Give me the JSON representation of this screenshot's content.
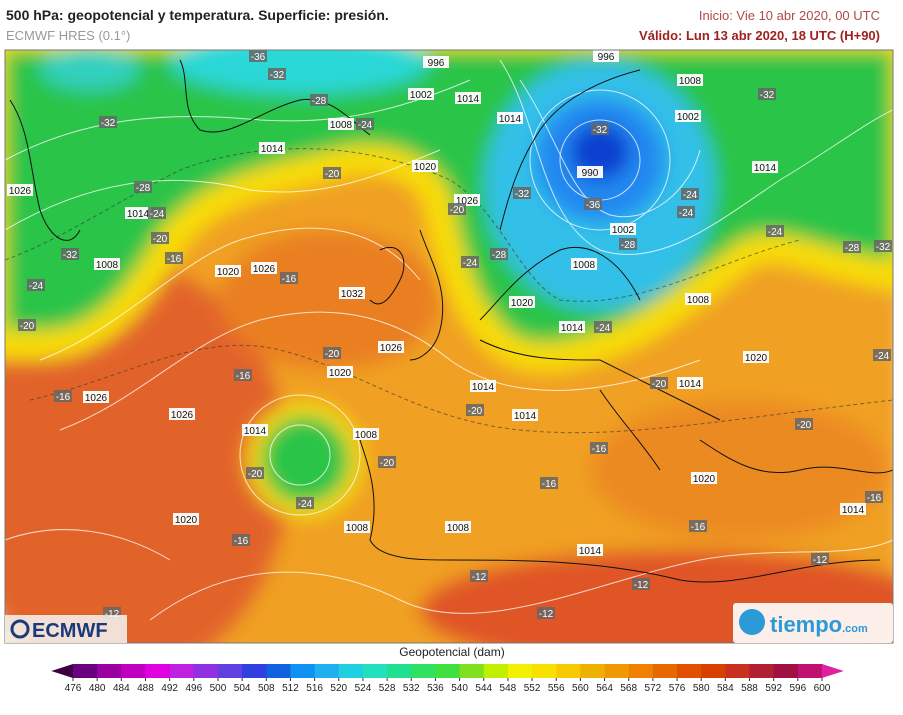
{
  "header": {
    "title": "500 hPa: geopotencial y temperatura. Superficie: presión.",
    "subtitle": "ECMWF HRES (0.1°)",
    "start": "Inicio: Vie 10 abr 2020, 00 UTC",
    "valid": "Válido: Lun 13 abr 2020, 18 UTC (H+90)"
  },
  "map": {
    "labels": [
      -36,
      -32,
      996,
      996,
      1008,
      -32,
      -28,
      1002,
      1014,
      1002,
      -32,
      1008,
      -24,
      1014,
      -32,
      1014,
      1020,
      -20,
      990,
      1014,
      -28,
      -36,
      -24,
      -24,
      1026,
      1014,
      -24,
      1026,
      -20,
      -32,
      -20,
      1002,
      -28,
      -24,
      -28,
      -32,
      -32,
      1008,
      -16,
      1020,
      1026,
      -16,
      -24,
      -28,
      1008,
      -24,
      1032,
      1020,
      1008,
      -20,
      1014,
      -24,
      -20,
      1026,
      1020,
      -24,
      1020,
      -16,
      1014,
      -20,
      1014,
      -16,
      1026,
      1026,
      -20,
      1014,
      1014,
      1008,
      -20,
      -16,
      -20,
      -20,
      1020,
      -16,
      -24,
      -16,
      1014,
      1020,
      1008,
      1008,
      -16,
      -16,
      1014,
      -12,
      -12,
      -12,
      -12,
      -12
    ]
  },
  "logos": {
    "left": "ECMWF",
    "right_main": "tiempo",
    "right_suffix": ".com"
  },
  "legend": {
    "title": "Geopotencial (dam)",
    "ticks": [
      476,
      480,
      484,
      488,
      492,
      496,
      500,
      504,
      508,
      512,
      516,
      520,
      524,
      528,
      532,
      536,
      540,
      544,
      548,
      552,
      556,
      560,
      564,
      568,
      572,
      576,
      580,
      584,
      588,
      592,
      596,
      600
    ],
    "colors": [
      "#3a0040",
      "#6a0080",
      "#9a00a0",
      "#c000c0",
      "#e000e0",
      "#c020e0",
      "#9030e0",
      "#6040e0",
      "#3040e0",
      "#1060e0",
      "#1090f0",
      "#20b0f0",
      "#20d0e0",
      "#20e0c0",
      "#20e090",
      "#30e060",
      "#40e040",
      "#80e020",
      "#c0f000",
      "#f0f000",
      "#f8e000",
      "#f8c800",
      "#f0b000",
      "#f09800",
      "#f08000",
      "#e86800",
      "#e05000",
      "#d84000",
      "#c83020",
      "#b02030",
      "#a01040",
      "#c01070",
      "#e020a0"
    ]
  }
}
